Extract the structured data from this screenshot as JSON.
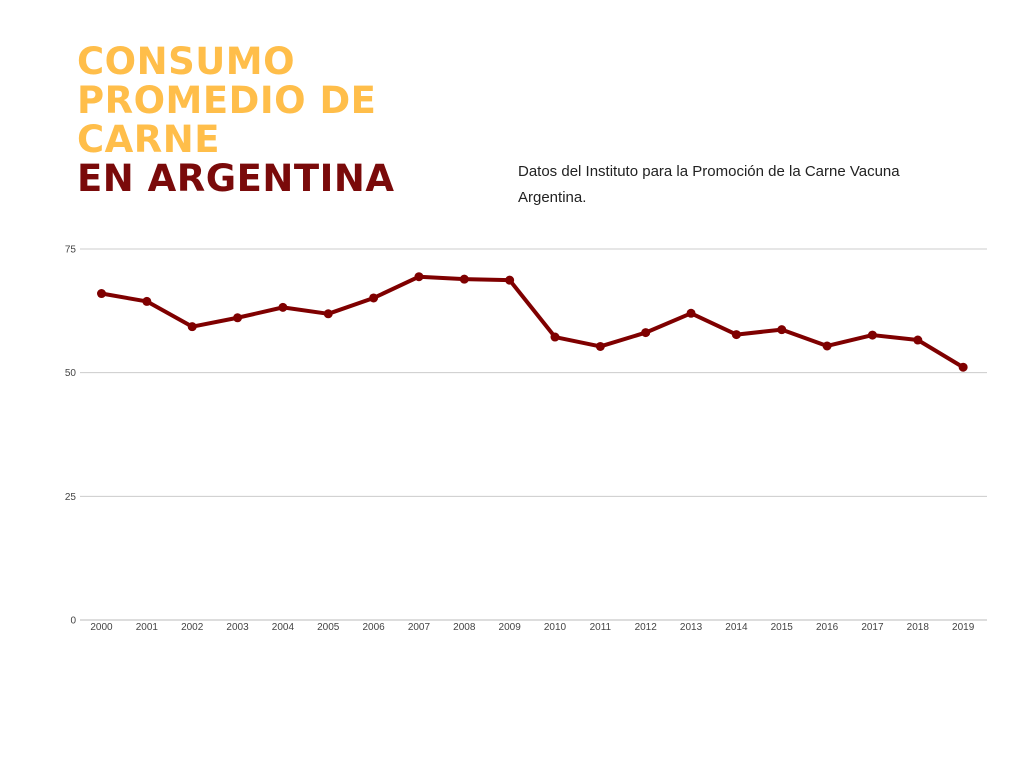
{
  "header": {
    "title_line_1": "CONSUMO",
    "title_line_2": "PROMEDIO DE",
    "title_line_3": "CARNE",
    "title_line_4": "EN ARGENTINA",
    "subtitle": "Datos del Instituto para la Promoción de la Carne Vacuna Argentina."
  },
  "colors": {
    "title_accent": "#ffbe4a",
    "title_dark": "#7a0a0a",
    "line": "#7f0000",
    "grid": "#cccccc"
  },
  "chart_data": {
    "type": "line",
    "title": "",
    "xlabel": "",
    "ylabel": "",
    "x": [
      "2000",
      "2001",
      "2002",
      "2003",
      "2004",
      "2005",
      "2006",
      "2007",
      "2008",
      "2009",
      "2010",
      "2011",
      "2012",
      "2013",
      "2014",
      "2015",
      "2016",
      "2017",
      "2018",
      "2019"
    ],
    "series": [
      {
        "values": [
          66.0,
          64.4,
          59.3,
          61.1,
          63.2,
          61.9,
          65.1,
          69.4,
          68.9,
          68.7,
          57.2,
          55.3,
          58.1,
          62.0,
          57.7,
          58.7,
          55.4,
          57.6,
          56.6,
          51.1
        ]
      }
    ],
    "ylim": [
      0,
      75
    ],
    "yticks": [
      "0",
      "25",
      "50",
      "75"
    ],
    "grid": true,
    "legend": "none"
  }
}
